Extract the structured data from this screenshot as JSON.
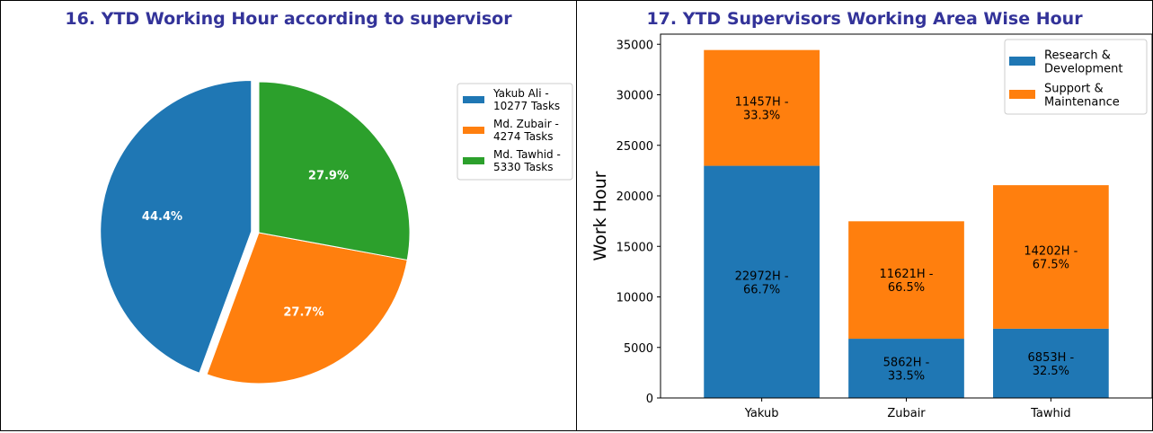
{
  "chart_data": [
    {
      "type": "pie",
      "title": "16. YTD Working Hour according to supervisor",
      "slices": [
        {
          "label": "Yakub Ali -\n10277 Tasks",
          "value": 44.4,
          "pct_label": "44.4%",
          "color": "#1f77b4",
          "exploded": true
        },
        {
          "label": "Md. Zubair -\n4274 Tasks",
          "value": 27.7,
          "pct_label": "27.7%",
          "color": "#ff7f0e",
          "exploded": false
        },
        {
          "label": "Md. Tawhid -\n5330 Tasks",
          "value": 27.9,
          "pct_label": "27.9%",
          "color": "#2ca02c",
          "exploded": false
        }
      ],
      "legend_position": "right"
    },
    {
      "type": "bar",
      "stacked": true,
      "title": "17. YTD Supervisors Working Area Wise Hour",
      "categories": [
        "Yakub",
        "Zubair",
        "Tawhid"
      ],
      "ylabel": "Work Hour",
      "xlabel": "",
      "ylim": [
        0,
        36000
      ],
      "yticks": [
        0,
        5000,
        10000,
        15000,
        20000,
        25000,
        30000,
        35000
      ],
      "series": [
        {
          "name": "Research &\nDevelopment",
          "color": "#1f77b4",
          "values": [
            22972,
            5862,
            6853
          ],
          "labels": [
            "22972H -\n66.7%",
            "5862H -\n33.5%",
            "6853H -\n32.5%"
          ]
        },
        {
          "name": "Support &\nMaintenance",
          "color": "#ff7f0e",
          "values": [
            11457,
            11621,
            14202
          ],
          "labels": [
            "11457H -\n33.3%",
            "11621H -\n66.5%",
            "14202H -\n67.5%"
          ]
        }
      ],
      "legend_position": "top-right"
    }
  ]
}
